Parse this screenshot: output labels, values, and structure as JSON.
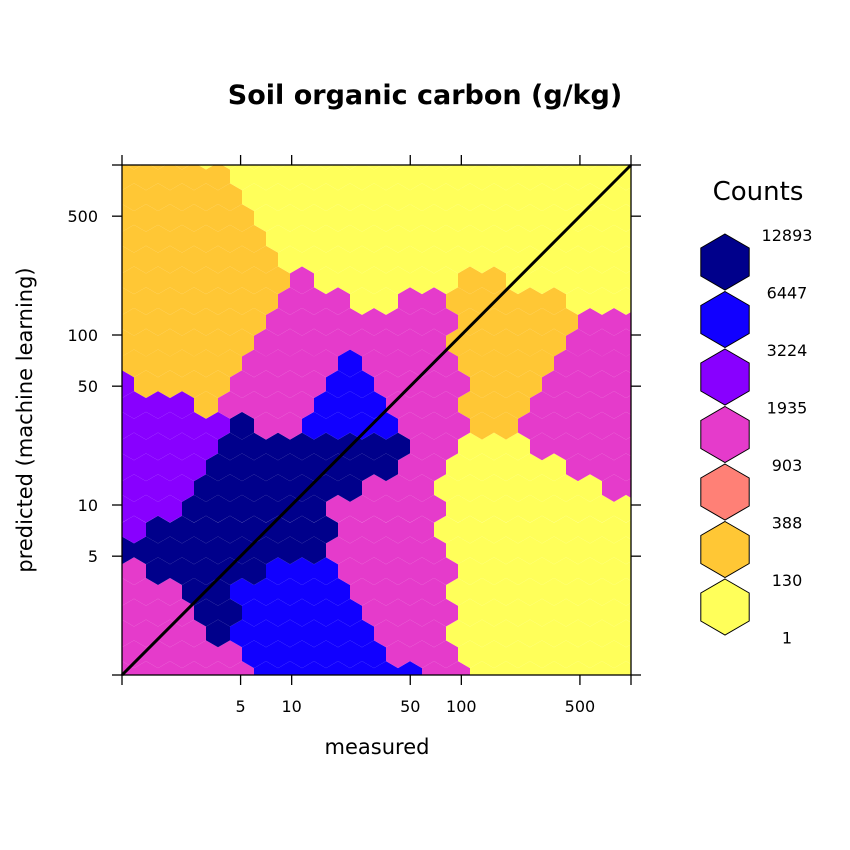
{
  "chart_data": {
    "type": "heatmap",
    "subtype": "hexbin",
    "title": "Soil organic carbon (g/kg)",
    "xlabel": "measured",
    "ylabel": "predicted (machine learning)",
    "x_scale": "log",
    "y_scale": "log",
    "xlim": [
      1,
      1000
    ],
    "ylim": [
      1,
      1000
    ],
    "x_ticks": [
      5,
      10,
      50,
      100,
      500
    ],
    "y_ticks": [
      5,
      10,
      50,
      100,
      500
    ],
    "reference_line": "1:1",
    "legend": {
      "title": "Counts",
      "placement": "right",
      "levels": [
        {
          "count": "12893",
          "color": "#00008b"
        },
        {
          "count": "6447",
          "color": "#1100ff"
        },
        {
          "count": "3224",
          "color": "#8800ff"
        },
        {
          "count": "1935",
          "color": "#e53bcb"
        },
        {
          "count": "903",
          "color": "#ff8076"
        },
        {
          "count": "388",
          "color": "#ffc735"
        },
        {
          "count": "130",
          "color": "#ffff5a"
        },
        {
          "count": "1",
          "color": "#ffff5a"
        }
      ]
    },
    "bins": [
      {
        "x": 2,
        "y": 2,
        "level": 3
      },
      {
        "x": 3,
        "y": 3,
        "level": 0
      },
      {
        "x": 5,
        "y": 5,
        "level": 0
      },
      {
        "x": 8,
        "y": 8,
        "level": 0
      },
      {
        "x": 12,
        "y": 12,
        "level": 0
      },
      {
        "x": 20,
        "y": 20,
        "level": 0
      },
      {
        "x": 3,
        "y": 8,
        "level": 0
      },
      {
        "x": 5,
        "y": 12,
        "level": 0
      },
      {
        "x": 8,
        "y": 3,
        "level": 1
      },
      {
        "x": 20,
        "y": 35,
        "level": 1
      },
      {
        "x": 2,
        "y": 15,
        "level": 2
      },
      {
        "x": 30,
        "y": 8,
        "level": 3
      },
      {
        "x": 50,
        "y": 50,
        "level": 3
      },
      {
        "x": 10,
        "y": 60,
        "level": 3
      },
      {
        "x": 4,
        "y": 100,
        "level": 5
      },
      {
        "x": 200,
        "y": 60,
        "level": 5
      },
      {
        "x": 500,
        "y": 40,
        "level": 3
      },
      {
        "x": 200,
        "y": 10,
        "level": 6
      },
      {
        "x": 30,
        "y": 500,
        "level": 7
      },
      {
        "x": 500,
        "y": 500,
        "level": 7
      }
    ]
  }
}
